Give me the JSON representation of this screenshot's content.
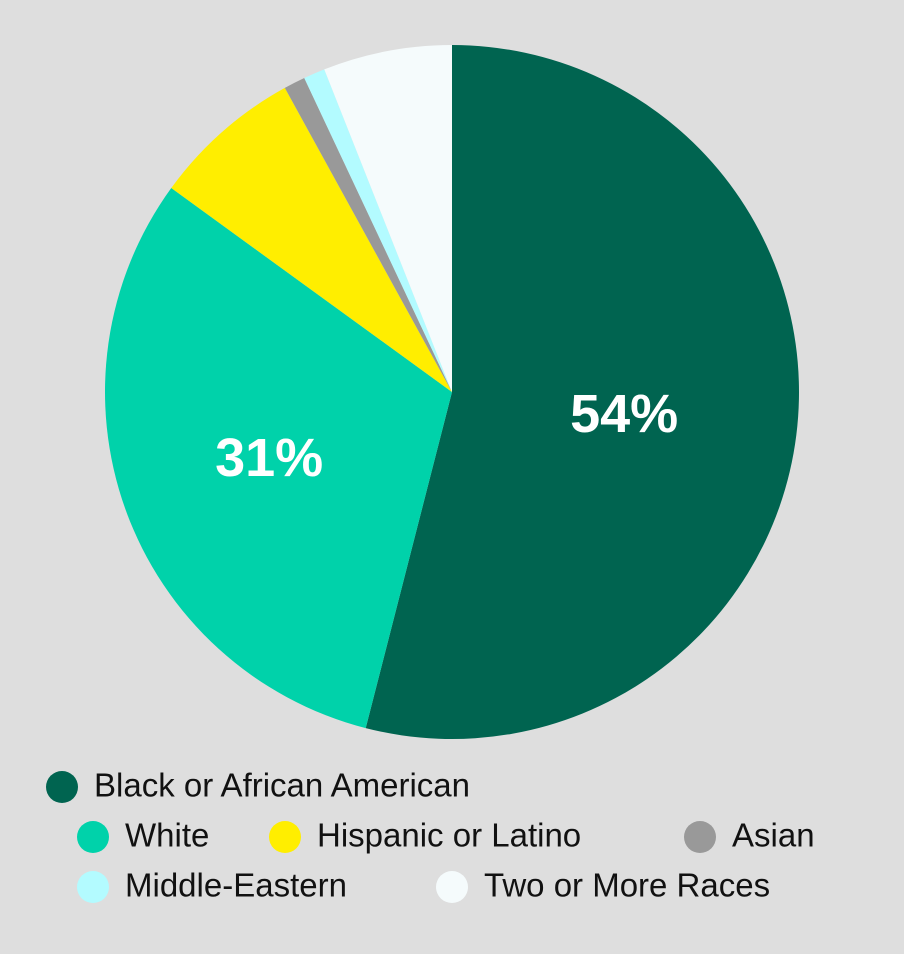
{
  "chart_data": {
    "type": "pie",
    "categories": [
      "Black or African American",
      "White",
      "Hispanic or Latino",
      "Asian",
      "Middle-Eastern",
      "Two or More Races"
    ],
    "values": [
      54,
      31,
      7,
      1,
      1,
      6
    ],
    "value_labels": [
      "54%",
      "31%",
      null,
      null,
      null,
      null
    ],
    "colors": [
      "#006450",
      "#00d2aa",
      "#ffee00",
      "#999999",
      "#b3fbff",
      "#f5fbfc"
    ],
    "legend": "bottom"
  }
}
